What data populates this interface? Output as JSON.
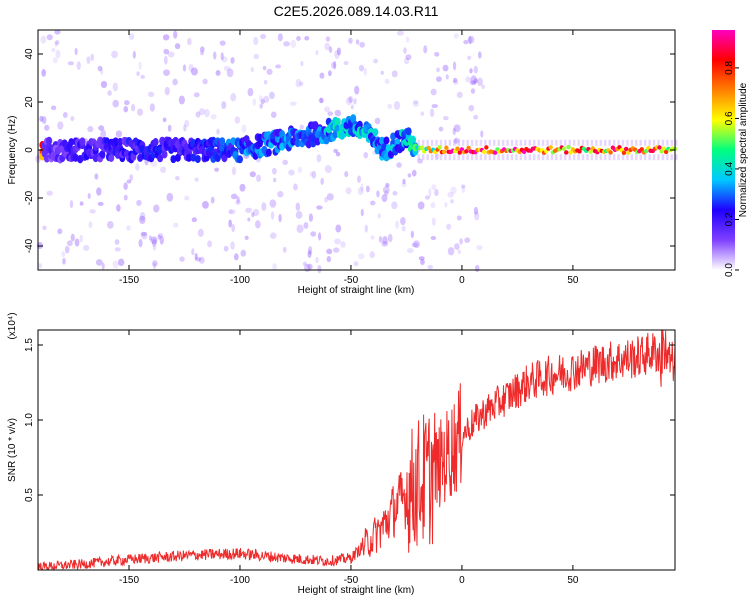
{
  "title": "C2E5.2026.089.14.03.R11",
  "chart_data": [
    {
      "type": "heatmap",
      "xlabel": "Height of straight line (km)",
      "ylabel": "Frequency (Hz)",
      "xlim": [
        -191,
        96
      ],
      "ylim": [
        -50,
        50
      ],
      "x_ticks": [
        -150,
        -100,
        -50,
        0,
        50
      ],
      "y_ticks": [
        -40,
        -20,
        0,
        20,
        40
      ],
      "colorbar": {
        "label": "Normalized spectral amplitude",
        "range": [
          0,
          0.95
        ],
        "ticks": [
          0.0,
          0.2,
          0.4,
          0.6,
          0.8
        ],
        "colormap": [
          "#ffffff",
          "#7f3fff",
          "#1f00ff",
          "#00c8ff",
          "#00ff7f",
          "#ffff00",
          "#ff7f00",
          "#ff0000",
          "#ff00c0"
        ]
      },
      "ridge": {
        "x": [
          -188,
          -170,
          -150,
          -130,
          -110,
          -100,
          -90,
          -80,
          -70,
          -60,
          -50,
          -40,
          -35,
          -30,
          -25,
          -20,
          0,
          50,
          90,
          96
        ],
        "y": [
          0,
          0,
          0,
          0,
          0,
          0,
          2,
          4,
          6,
          8,
          10,
          5,
          0,
          3,
          5,
          0,
          0,
          0,
          0,
          0
        ],
        "amplitude": [
          0.15,
          0.2,
          0.22,
          0.22,
          0.25,
          0.3,
          0.3,
          0.3,
          0.3,
          0.35,
          0.4,
          0.35,
          0.3,
          0.35,
          0.35,
          0.5,
          0.9,
          0.75,
          0.8,
          0.7
        ]
      }
    },
    {
      "type": "line",
      "xlabel": "Height of straight line (km)",
      "ylabel": "SNR (10 * v/v)",
      "y_multiplier": "(x10⁴)",
      "xlim": [
        -191,
        96
      ],
      "ylim": [
        0,
        1.6
      ],
      "x_ticks": [
        -150,
        -100,
        -50,
        0,
        50
      ],
      "y_ticks": [
        0.5,
        1.0,
        1.5
      ],
      "y_tick_labels": [
        "0.5",
        "1.0",
        "1.5"
      ],
      "color": "#ee2a2a",
      "series": [
        {
          "x": [
            -191,
            -170,
            -150,
            -120,
            -100,
            -80,
            -60,
            -50,
            -45,
            -40,
            -35,
            -30,
            -25,
            -20,
            -15,
            -10,
            -5,
            0,
            5,
            10,
            15,
            20,
            25,
            30,
            40,
            50,
            60,
            70,
            80,
            85,
            88,
            90,
            92,
            96
          ],
          "y": [
            0.02,
            0.04,
            0.07,
            0.1,
            0.11,
            0.08,
            0.06,
            0.08,
            0.15,
            0.22,
            0.3,
            0.42,
            0.5,
            0.58,
            0.62,
            0.7,
            0.8,
            0.9,
            0.98,
            1.05,
            1.1,
            1.15,
            1.2,
            1.25,
            1.3,
            1.33,
            1.37,
            1.4,
            1.42,
            1.45,
            1.45,
            1.42,
            1.4,
            1.38
          ]
        }
      ]
    }
  ]
}
